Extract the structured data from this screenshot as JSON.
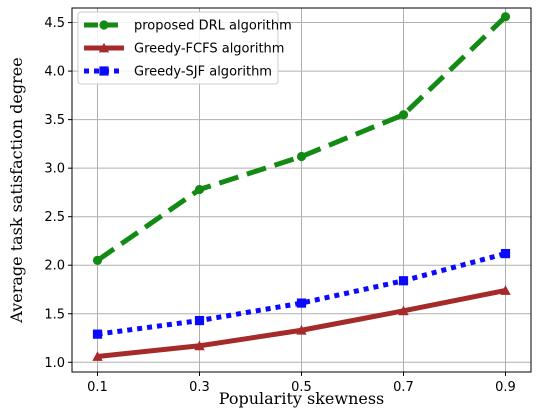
{
  "chart_data": {
    "type": "line",
    "title": "",
    "xlabel": "Popularity skewness",
    "ylabel": "Average task satisfaction degree",
    "x": [
      0.1,
      0.3,
      0.5,
      0.7,
      0.9
    ],
    "x_tick_labels": [
      "0.1",
      "0.3",
      "0.5",
      "0.7",
      "0.9"
    ],
    "xlim": [
      0.05,
      0.95
    ],
    "ylim": [
      0.9,
      4.65
    ],
    "y_ticks": [
      1.0,
      1.5,
      2.0,
      2.5,
      3.0,
      3.5,
      4.0,
      4.5
    ],
    "y_tick_labels": [
      "1.0",
      "1.5",
      "2.0",
      "2.5",
      "3.0",
      "3.5",
      "4.0",
      "4.5"
    ],
    "grid": true,
    "legend_position": "top-left",
    "series": [
      {
        "name": "proposed DRL algorithm",
        "values": [
          2.05,
          2.78,
          3.12,
          3.55,
          4.56
        ],
        "color": "#138a13",
        "line_style": "dashed",
        "marker": "circle"
      },
      {
        "name": "Greedy-FCFS algorithm",
        "values": [
          1.06,
          1.17,
          1.33,
          1.53,
          1.74
        ],
        "color": "#a52a2a",
        "line_style": "solid",
        "marker": "triangle"
      },
      {
        "name": "Greedy-SJF algorithm",
        "values": [
          1.29,
          1.43,
          1.61,
          1.84,
          2.12
        ],
        "color": "#0a0aff",
        "line_style": "dotted",
        "marker": "square"
      }
    ]
  }
}
